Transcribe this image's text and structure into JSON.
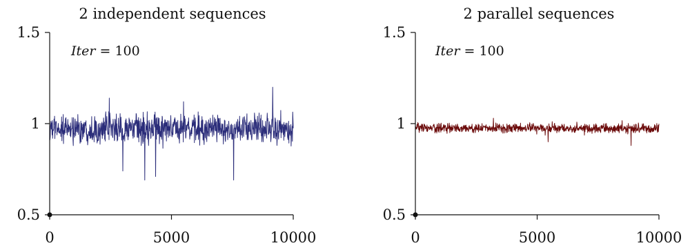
{
  "chart_data": [
    {
      "type": "line",
      "title": "2 independent sequences",
      "xlabel": "",
      "ylabel": "",
      "xlim": [
        0,
        10000
      ],
      "ylim": [
        0.5,
        1.5
      ],
      "xticks": [
        0,
        5000,
        10000
      ],
      "xtick_labels": [
        "0",
        "5000",
        "10000"
      ],
      "yticks": [
        0.5,
        1,
        1.5
      ],
      "ytick_labels": [
        "0.5",
        "1",
        "1.5"
      ],
      "grid": false,
      "annotation": {
        "var": "Iter",
        "op": " = ",
        "value": "100"
      },
      "origin_marker": {
        "x": 0,
        "y": 0.5
      },
      "color": "#2b2d7a",
      "series": [
        {
          "mean": 0.97,
          "noise_sd": 0.055,
          "n_points": 900,
          "min": 0.69,
          "max": 1.2,
          "spikes": [
            {
              "x": 2450,
              "y": 1.14
            },
            {
              "x": 3900,
              "y": 0.69
            },
            {
              "x": 4350,
              "y": 0.71
            },
            {
              "x": 7550,
              "y": 0.69
            },
            {
              "x": 9150,
              "y": 1.2
            },
            {
              "x": 3000,
              "y": 0.74
            },
            {
              "x": 5500,
              "y": 1.12
            }
          ]
        }
      ]
    },
    {
      "type": "line",
      "title": "2 parallel sequences",
      "xlabel": "",
      "ylabel": "",
      "xlim": [
        0,
        10000
      ],
      "ylim": [
        0.5,
        1.5
      ],
      "xticks": [
        0,
        5000,
        10000
      ],
      "xtick_labels": [
        "0",
        "5000",
        "10000"
      ],
      "yticks": [
        0.5,
        1,
        1.5
      ],
      "ytick_labels": [
        "0.5",
        "1",
        "1.5"
      ],
      "grid": false,
      "annotation": {
        "var": "Iter",
        "op": " = ",
        "value": "100"
      },
      "origin_marker": {
        "x": 0,
        "y": 0.5
      },
      "color": "#6b0a0a",
      "series": [
        {
          "mean": 0.975,
          "noise_sd": 0.018,
          "n_points": 900,
          "min": 0.88,
          "max": 1.04,
          "spikes": [
            {
              "x": 5450,
              "y": 0.9
            },
            {
              "x": 8850,
              "y": 0.88
            },
            {
              "x": 3200,
              "y": 1.03
            }
          ]
        }
      ]
    }
  ]
}
